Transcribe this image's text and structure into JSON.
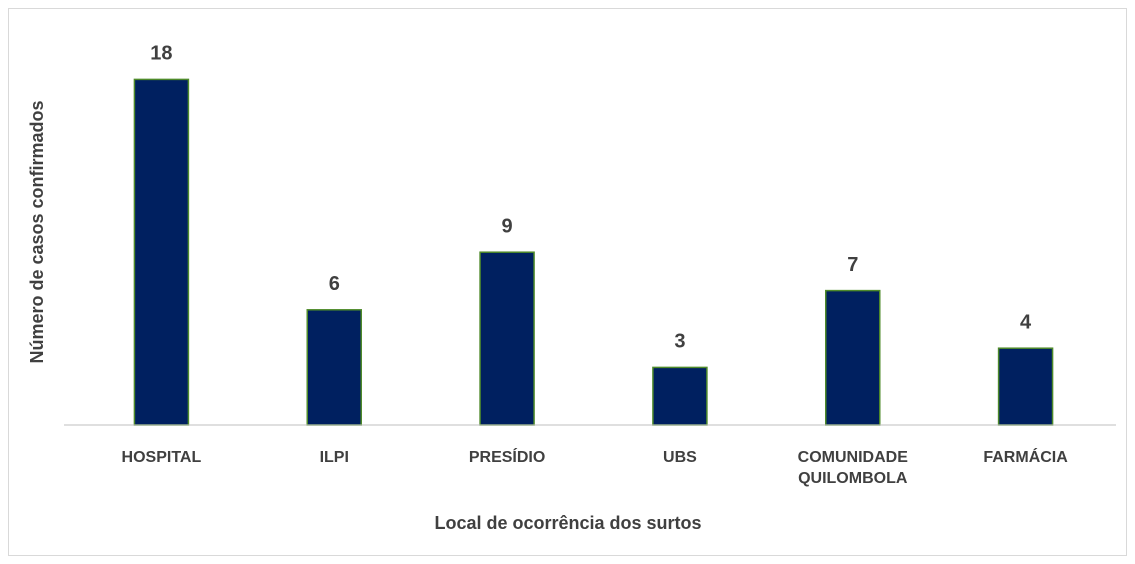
{
  "chart_data": {
    "type": "bar",
    "categories": [
      "HOSPITAL",
      "ILPI",
      "PRESÍDIO",
      "UBS",
      "COMUNIDADE QUILOMBOLA",
      "FARMÁCIA"
    ],
    "values": [
      18,
      6,
      9,
      3,
      7,
      4
    ],
    "color": "#002060",
    "edge_color": "#4e8a2a",
    "ylim": [
      0,
      20
    ],
    "x_label": "Local de ocorrência dos surtos",
    "y_label": "Número de casos confirmados"
  }
}
